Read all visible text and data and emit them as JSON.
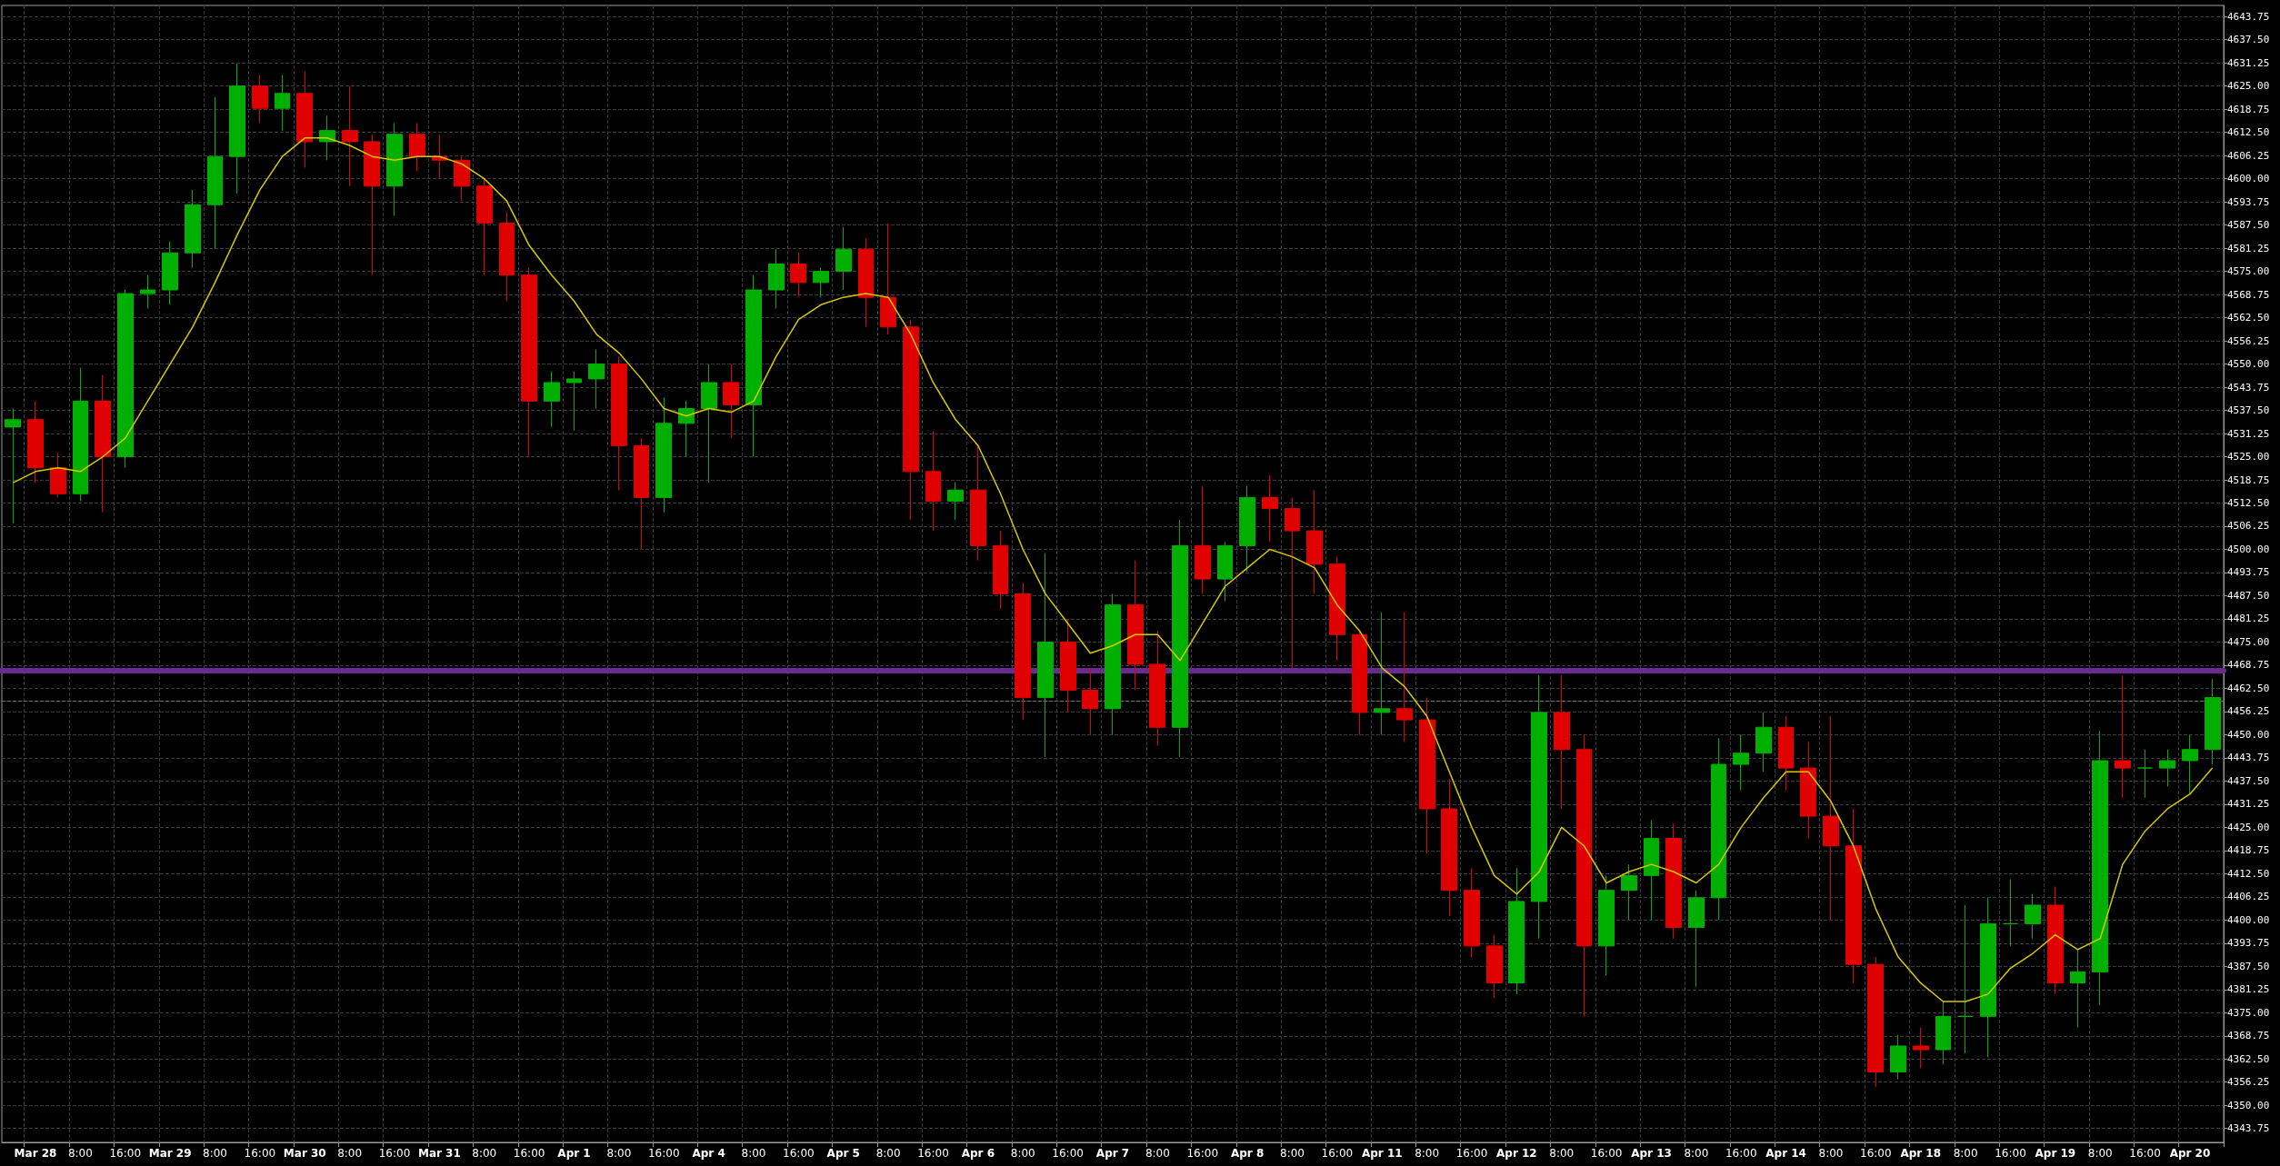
{
  "chart_data": {
    "type": "candlestick",
    "categories": [
      null,
      "Mar 28",
      null,
      "8:00",
      null,
      "16:00",
      null,
      "Mar 29",
      null,
      "8:00",
      null,
      "16:00",
      null,
      "Mar 30",
      null,
      "8:00",
      null,
      "16:00",
      null,
      "Mar 31",
      null,
      "8:00",
      null,
      "16:00",
      null,
      "Apr 1",
      null,
      "8:00",
      null,
      "16:00",
      null,
      "Apr 4",
      null,
      "8:00",
      null,
      "16:00",
      null,
      "Apr 5",
      null,
      "8:00",
      null,
      "16:00",
      null,
      "Apr 6",
      null,
      "8:00",
      null,
      "16:00",
      null,
      "Apr 7",
      null,
      "8:00",
      null,
      "16:00",
      null,
      "Apr 8",
      null,
      "8:00",
      null,
      "16:00",
      null,
      "Apr 11",
      null,
      "8:00",
      null,
      "16:00",
      null,
      "Apr 12",
      null,
      "8:00",
      null,
      "16:00",
      null,
      "Apr 13",
      null,
      "8:00",
      null,
      "16:00",
      null,
      "Apr 14",
      null,
      "8:00",
      null,
      "16:00",
      null,
      "Apr 18",
      null,
      "8:00",
      null,
      "16:00",
      null,
      "Apr 19",
      null,
      "8:00",
      null,
      "16:00",
      null,
      "Apr 20",
      null
    ],
    "ohlc": [
      [
        4533,
        4538,
        4507,
        4535
      ],
      [
        4535,
        4540,
        4518,
        4522
      ],
      [
        4522,
        4526,
        4514,
        4515
      ],
      [
        4515,
        4549,
        4513,
        4540
      ],
      [
        4540,
        4547,
        4510,
        4525
      ],
      [
        4525,
        4570,
        4522,
        4569
      ],
      [
        4569,
        4574,
        4565,
        4570
      ],
      [
        4570,
        4583,
        4566,
        4580
      ],
      [
        4580,
        4597,
        4576,
        4593
      ],
      [
        4593,
        4622,
        4581,
        4606
      ],
      [
        4606,
        4631,
        4596,
        4625
      ],
      [
        4625,
        4628,
        4615,
        4619
      ],
      [
        4619,
        4628,
        4613,
        4623
      ],
      [
        4623,
        4629,
        4603,
        4610
      ],
      [
        4610,
        4617,
        4605,
        4613
      ],
      [
        4613,
        4625,
        4598,
        4610
      ],
      [
        4610,
        4612,
        4574,
        4598
      ],
      [
        4598,
        4615,
        4590,
        4612
      ],
      [
        4612,
        4615,
        4602,
        4606
      ],
      [
        4606,
        4612,
        4600,
        4605
      ],
      [
        4605,
        4606,
        4594,
        4598
      ],
      [
        4598,
        4600,
        4574,
        4588
      ],
      [
        4588,
        4591,
        4567,
        4574
      ],
      [
        4574,
        4576,
        4525,
        4540
      ],
      [
        4540,
        4548,
        4533,
        4545
      ],
      [
        4545,
        4548,
        4532,
        4546
      ],
      [
        4546,
        4554,
        4538,
        4550
      ],
      [
        4550,
        4552,
        4516,
        4528
      ],
      [
        4528,
        4530,
        4500,
        4514
      ],
      [
        4514,
        4541,
        4510,
        4534
      ],
      [
        4534,
        4540,
        4525,
        4538
      ],
      [
        4538,
        4550,
        4518,
        4545
      ],
      [
        4545,
        4550,
        4530,
        4539
      ],
      [
        4539,
        4574,
        4525,
        4570
      ],
      [
        4570,
        4581,
        4565,
        4577
      ],
      [
        4577,
        4580,
        4568,
        4572
      ],
      [
        4572,
        4576,
        4568,
        4575
      ],
      [
        4575,
        4587,
        4570,
        4581
      ],
      [
        4581,
        4584,
        4560,
        4568
      ],
      [
        4568,
        4588,
        4558,
        4560
      ],
      [
        4560,
        4562,
        4508,
        4521
      ],
      [
        4521,
        4532,
        4505,
        4513
      ],
      [
        4513,
        4518,
        4508,
        4516
      ],
      [
        4516,
        4528,
        4497,
        4501
      ],
      [
        4501,
        4505,
        4484,
        4488
      ],
      [
        4488,
        4491,
        4454,
        4460
      ],
      [
        4460,
        4499,
        4444,
        4475
      ],
      [
        4475,
        4481,
        4456,
        4462
      ],
      [
        4462,
        4468,
        4450,
        4457
      ],
      [
        4457,
        4488,
        4450,
        4485
      ],
      [
        4485,
        4497,
        4462,
        4469
      ],
      [
        4469,
        4478,
        4447,
        4452
      ],
      [
        4452,
        4508,
        4444,
        4501
      ],
      [
        4501,
        4517,
        4488,
        4492
      ],
      [
        4492,
        4502,
        4486,
        4501
      ],
      [
        4501,
        4517,
        4494,
        4514
      ],
      [
        4514,
        4520,
        4502,
        4511
      ],
      [
        4511,
        4514,
        4468,
        4505
      ],
      [
        4505,
        4516,
        4488,
        4496
      ],
      [
        4496,
        4498,
        4470,
        4477
      ],
      [
        4477,
        4478,
        4450,
        4456
      ],
      [
        4456,
        4483,
        4450,
        4457
      ],
      [
        4457,
        4483,
        4448,
        4454
      ],
      [
        4454,
        4460,
        4418,
        4430
      ],
      [
        4430,
        4438,
        4401,
        4408
      ],
      [
        4408,
        4414,
        4390,
        4393
      ],
      [
        4393,
        4396,
        4379,
        4383
      ],
      [
        4383,
        4414,
        4380,
        4405
      ],
      [
        4405,
        4466,
        4395,
        4456
      ],
      [
        4456,
        4466,
        4430,
        4446
      ],
      [
        4446,
        4450,
        4374,
        4393
      ],
      [
        4393,
        4412,
        4385,
        4408
      ],
      [
        4408,
        4415,
        4400,
        4412
      ],
      [
        4412,
        4427,
        4400,
        4422
      ],
      [
        4422,
        4426,
        4395,
        4398
      ],
      [
        4398,
        4408,
        4382,
        4406
      ],
      [
        4406,
        4449,
        4400,
        4442
      ],
      [
        4442,
        4450,
        4435,
        4445
      ],
      [
        4445,
        4456,
        4440,
        4452
      ],
      [
        4452,
        4455,
        4435,
        4441
      ],
      [
        4441,
        4448,
        4422,
        4428
      ],
      [
        4428,
        4455,
        4400,
        4420
      ],
      [
        4420,
        4430,
        4383,
        4388
      ],
      [
        4388,
        4390,
        4355,
        4359
      ],
      [
        4359,
        4369,
        4357,
        4366
      ],
      [
        4366,
        4371,
        4360,
        4365
      ],
      [
        4365,
        4378,
        4361,
        4374
      ],
      [
        4374,
        4404,
        4364,
        4374
      ],
      [
        4374,
        4406,
        4363,
        4399
      ],
      [
        4399,
        4411,
        4393,
        4399
      ],
      [
        4399,
        4407,
        4395,
        4404
      ],
      [
        4404,
        4409,
        4380,
        4383
      ],
      [
        4383,
        4392,
        4371,
        4386
      ],
      [
        4386,
        4451,
        4377,
        4443
      ],
      [
        4443,
        4466,
        4433,
        4441
      ],
      [
        4441,
        4446,
        4433,
        4441
      ],
      [
        4441,
        4446,
        4436,
        4443
      ],
      [
        4443,
        4450,
        4434,
        4446
      ],
      [
        4446,
        4465,
        4442,
        4460
      ]
    ],
    "colors": [
      "#00b000",
      "#e00000",
      "#e00000",
      "#00b000",
      "#e00000",
      "#00b000",
      "#00b000",
      "#00b000",
      "#00b000",
      "#00b000",
      "#00b000",
      "#e00000",
      "#00b000",
      "#e00000",
      "#00b000",
      "#e00000",
      "#e00000",
      "#00b000",
      "#e00000",
      "#e00000",
      "#e00000",
      "#e00000",
      "#e00000",
      "#e00000",
      "#00b000",
      "#00b000",
      "#00b000",
      "#e00000",
      "#e00000",
      "#00b000",
      "#00b000",
      "#00b000",
      "#e00000",
      "#00b000",
      "#00b000",
      "#e00000",
      "#00b000",
      "#00b000",
      "#e00000",
      "#e00000",
      "#e00000",
      "#e00000",
      "#00b000",
      "#e00000",
      "#e00000",
      "#e00000",
      "#00b000",
      "#e00000",
      "#e00000",
      "#00b000",
      "#e00000",
      "#e00000",
      "#00b000",
      "#e00000",
      "#00b000",
      "#00b000",
      "#e00000",
      "#e00000",
      "#e00000",
      "#e00000",
      "#e00000",
      "#00b000",
      "#e00000",
      "#e00000",
      "#e00000",
      "#e00000",
      "#e00000",
      "#00b000",
      "#00b000",
      "#e00000",
      "#e00000",
      "#00b000",
      "#00b000",
      "#00b000",
      "#e00000",
      "#00b000",
      "#00b000",
      "#00b000",
      "#00b000",
      "#e00000",
      "#e00000",
      "#e00000",
      "#e00000",
      "#e00000",
      "#00b000",
      "#e00000",
      "#00b000",
      "#00b000",
      "#00b000",
      "#00b000",
      "#00b000",
      "#e00000",
      "#00b000",
      "#00b000",
      "#e00000",
      "#00b000",
      "#00b000",
      "#00b000",
      "#00b000"
    ],
    "series": [
      {
        "type": "line",
        "color": "#d8c800",
        "values": [
          4518,
          4521,
          4522,
          4521,
          4525,
          4530,
          4540,
          4550,
          4560,
          4572,
          4585,
          4597,
          4606,
          4611,
          4611,
          4609,
          4606,
          4605,
          4606,
          4606,
          4604,
          4600,
          4594,
          4582,
          4574,
          4567,
          4558,
          4553,
          4546,
          4538,
          4536,
          4538,
          4537,
          4540,
          4552,
          4562,
          4566,
          4568,
          4569,
          4568,
          4558,
          4545,
          4535,
          4528,
          4515,
          4500,
          4488,
          4480,
          4472,
          4474,
          4477,
          4477,
          4470,
          4480,
          4490,
          4495,
          4500,
          4498,
          4495,
          4485,
          4478,
          4468,
          4463,
          4455,
          4440,
          4425,
          4412,
          4407,
          4413,
          4425,
          4420,
          4410,
          4413,
          4415,
          4413,
          4410,
          4415,
          4425,
          4433,
          4440,
          4440,
          4432,
          4420,
          4403,
          4390,
          4383,
          4378,
          4378,
          4380,
          4387,
          4391,
          4396,
          4392,
          4395,
          4415,
          4424,
          4430,
          4434,
          4441
        ]
      }
    ],
    "ylim": [
      4340,
      4646.75
    ],
    "yticks": [
      4343.75,
      {
        "value": 4350,
        "label": "4350.00"
      },
      4356.25,
      {
        "value": 4362.5,
        "label": "4362.50"
      },
      4368.75,
      {
        "value": 4375,
        "label": "4375.00"
      },
      4381.25,
      {
        "value": 4387.5,
        "label": "4387.50"
      },
      4393.75,
      {
        "value": 4400,
        "label": "4400.00"
      },
      4406.25,
      {
        "value": 4412.5,
        "label": "4412.50"
      },
      4418.75,
      {
        "value": 4425,
        "label": "4425.00"
      },
      4431.25,
      {
        "value": 4437.5,
        "label": "4437.50"
      },
      4443.75,
      {
        "value": 4450,
        "label": "4450.00"
      },
      4456.25,
      {
        "value": 4462.5,
        "label": "4462.50"
      },
      4468.75,
      {
        "value": 4475,
        "label": "4475.00"
      },
      4481.25,
      {
        "value": 4487.5,
        "label": "4487.50"
      },
      4493.75,
      {
        "value": 4500,
        "label": "4500.00"
      },
      4506.25,
      {
        "value": 4512.5,
        "label": "4512.50"
      },
      4518.75,
      {
        "value": 4525,
        "label": "4525.00"
      },
      4531.25,
      {
        "value": 4537.5,
        "label": "4537.50"
      },
      4543.75,
      {
        "value": 4550,
        "label": "4550.00"
      },
      4556.25,
      {
        "value": 4562.5,
        "label": "4562.50"
      },
      4568.75,
      {
        "value": 4575,
        "label": "4575.00"
      },
      4581.25,
      {
        "value": 4587.5,
        "label": "4587.50"
      },
      4593.75,
      {
        "value": 4600,
        "label": "4600.00"
      },
      4606.25,
      {
        "value": 4612.5,
        "label": "4612.50"
      },
      4618.75,
      {
        "value": 4625,
        "label": "4625.00"
      },
      4631.25,
      {
        "value": 4637.5,
        "label": "4637.50"
      },
      4643.75
    ],
    "grid": true,
    "marker": "none",
    "ref_lines": [
      {
        "axis": "y",
        "value": 4467.25,
        "color": "#6a2a90",
        "line_style": "solid"
      },
      {
        "axis": "y",
        "value": 4459,
        "color": "#707070",
        "line_style": "dashed"
      }
    ]
  }
}
